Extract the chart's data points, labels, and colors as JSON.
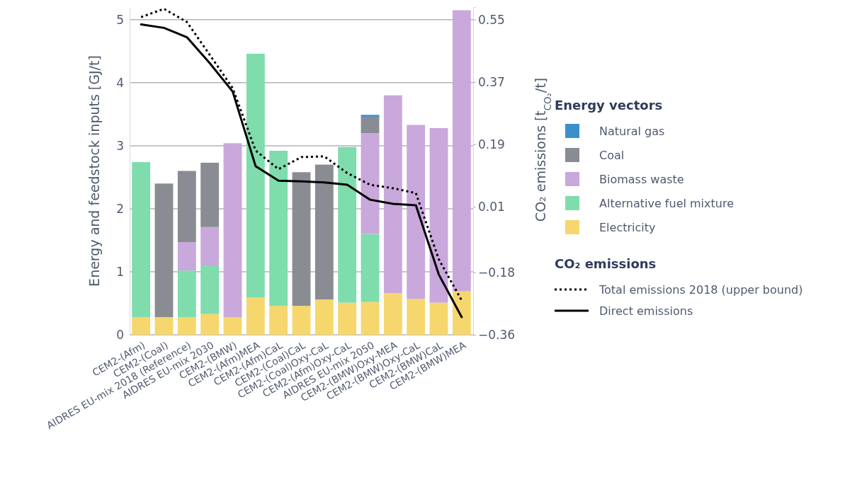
{
  "chart_data": {
    "type": "bar",
    "stacked": true,
    "categories": [
      "CEM2-(Afm)",
      "CEM2-(Coal)",
      "AIDRES EU-mix 2018 (Reference)",
      "AIDRES EU-mix 2030",
      "CEM2-(BMW)",
      "CEM2-(Afm)MEA",
      "CEM2-(Afm)CaL",
      "CEM2-(Coal)CaL",
      "CEM2-(Coal)Oxy-CaL",
      "CEM2-(Afm)Oxy-CaL",
      "AIDRES EU-mix 2050",
      "CEM2-(BMW)Oxy-MEA",
      "CEM2-(BMW)Oxy-CaL",
      "CEM2-(BMW)CaL",
      "CEM2-(BMW)MEA"
    ],
    "ylabel": "Energy and feedstock inputs [GJ/t]",
    "y2label": "CO₂ emissions [t$_{CO₂}$/t]",
    "ylim": [
      0,
      5.2
    ],
    "yticks": [
      0,
      1,
      2,
      3,
      4,
      5
    ],
    "y2lim": [
      -0.36,
      0.586
    ],
    "y2ticks": [
      {
        "value": -0.36,
        "label": "−0.36"
      },
      {
        "value": -0.18,
        "label": "−0.18"
      },
      0.01,
      0.19,
      0.37,
      0.55
    ],
    "grid": "y",
    "legend": "right",
    "legend_title": "Energy vectors",
    "annotations": [
      "CO₂ emissions"
    ],
    "marker": "none",
    "series": [
      {
        "name": "Electricity",
        "color": "#f5d76e",
        "values": [
          0.28,
          0.28,
          0.28,
          0.33,
          0.28,
          0.59,
          0.46,
          0.46,
          0.56,
          0.51,
          0.52,
          0.66,
          0.57,
          0.51,
          0.69
        ]
      },
      {
        "name": "Alternative fuel mixture",
        "color": "#7fdcac",
        "values": [
          2.46,
          null,
          0.74,
          0.76,
          null,
          3.87,
          2.46,
          null,
          null,
          2.47,
          1.08,
          null,
          null,
          null,
          null
        ]
      },
      {
        "name": "Biomass waste",
        "color": "#c9a8dc",
        "values": [
          null,
          null,
          0.45,
          0.62,
          2.76,
          null,
          null,
          null,
          null,
          null,
          1.6,
          3.14,
          2.76,
          2.77,
          4.46
        ]
      },
      {
        "name": "Coal",
        "color": "#898c92",
        "values": [
          null,
          2.12,
          1.13,
          1.02,
          null,
          null,
          null,
          2.12,
          2.14,
          null,
          0.26,
          null,
          null,
          null,
          null
        ]
      },
      {
        "name": "Natural gas",
        "color": "#3d8fcc",
        "values": [
          null,
          null,
          null,
          null,
          null,
          null,
          null,
          null,
          null,
          null,
          0.03,
          null,
          null,
          null,
          null
        ]
      },
      {
        "name": "Total emissions 2018 (upper bound)",
        "type": "line",
        "axis": "y2",
        "line_style": "dotted",
        "color": "#000000",
        "values": [
          0.557,
          0.581,
          0.543,
          0.448,
          0.352,
          0.172,
          0.118,
          0.153,
          0.155,
          0.107,
          0.073,
          0.063,
          0.049,
          -0.142,
          -0.261
        ]
      },
      {
        "name": "Direct emissions",
        "type": "line",
        "axis": "y2",
        "line_style": "solid",
        "color": "#000000",
        "values": [
          0.536,
          0.526,
          0.499,
          0.424,
          0.342,
          0.127,
          0.085,
          0.083,
          0.08,
          0.073,
          0.03,
          0.018,
          0.014,
          -0.186,
          -0.309
        ]
      }
    ]
  }
}
